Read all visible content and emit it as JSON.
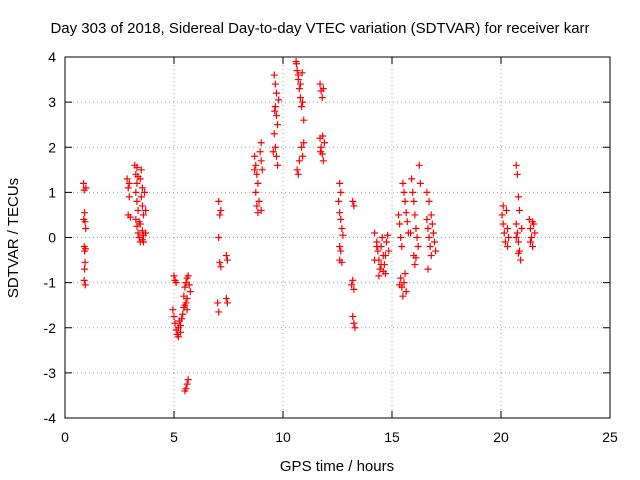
{
  "chart_data": {
    "type": "scatter",
    "title": "Day 303 of 2018, Sidereal Day-to-day VTEC variation (SDTVAR) for receiver karr",
    "xlabel": "GPS time / hours",
    "ylabel": "SDTVAR / TECUs",
    "xlim": [
      0,
      25
    ],
    "ylim": [
      -4,
      4
    ],
    "xticks": [
      "0",
      "5",
      "10",
      "15",
      "20",
      "25"
    ],
    "yticks": [
      "-4",
      "-3",
      "-2",
      "-1",
      "0",
      "1",
      "2",
      "3",
      "4"
    ],
    "grid": true,
    "legend": "none",
    "marker": "+",
    "marker_color": "#ff0000",
    "series": [
      {
        "name": "SDTVAR",
        "points": [
          [
            0.85,
            1.2
          ],
          [
            0.88,
            1.05
          ],
          [
            0.9,
            0.55
          ],
          [
            0.92,
            0.35
          ],
          [
            0.95,
            0.2
          ],
          [
            0.88,
            -0.2
          ],
          [
            0.9,
            -0.3
          ],
          [
            0.92,
            -0.55
          ],
          [
            0.9,
            -0.7
          ],
          [
            0.88,
            -0.95
          ],
          [
            0.93,
            -1.05
          ],
          [
            0.96,
            1.1
          ],
          [
            0.86,
            0.4
          ],
          [
            0.94,
            -0.25
          ],
          [
            2.85,
            1.3
          ],
          [
            2.9,
            1.1
          ],
          [
            2.95,
            0.9
          ],
          [
            2.9,
            0.5
          ],
          [
            3.0,
            0.45
          ],
          [
            2.95,
            1.2
          ],
          [
            3.2,
            1.6
          ],
          [
            3.25,
            1.4
          ],
          [
            3.3,
            1.2
          ],
          [
            3.25,
            1.0
          ],
          [
            3.3,
            0.8
          ],
          [
            3.35,
            0.6
          ],
          [
            3.25,
            0.4
          ],
          [
            3.3,
            0.25
          ],
          [
            3.35,
            0.1
          ],
          [
            3.4,
            0.0
          ],
          [
            3.45,
            -0.1
          ],
          [
            3.5,
            1.5
          ],
          [
            3.45,
            1.3
          ],
          [
            3.55,
            1.1
          ],
          [
            3.5,
            0.9
          ],
          [
            3.55,
            0.7
          ],
          [
            3.6,
            0.5
          ],
          [
            3.45,
            0.3
          ],
          [
            3.55,
            0.15
          ],
          [
            3.6,
            0.05
          ],
          [
            3.55,
            -0.05
          ],
          [
            3.65,
            1.0
          ],
          [
            3.7,
            0.6
          ],
          [
            3.7,
            0.1
          ],
          [
            3.3,
            1.55
          ],
          [
            3.35,
            1.35
          ],
          [
            3.4,
            0.35
          ],
          [
            3.6,
            -0.1
          ],
          [
            4.95,
            -1.6
          ],
          [
            5.0,
            -1.75
          ],
          [
            5.05,
            -1.9
          ],
          [
            5.1,
            -2.05
          ],
          [
            5.15,
            -2.15
          ],
          [
            5.2,
            -2.0
          ],
          [
            5.25,
            -1.85
          ],
          [
            5.3,
            -2.1
          ],
          [
            5.35,
            -1.8
          ],
          [
            5.4,
            -1.7
          ],
          [
            5.45,
            -1.55
          ],
          [
            5.5,
            -1.5
          ],
          [
            5.55,
            -1.45
          ],
          [
            5.6,
            -1.6
          ],
          [
            5.45,
            -1.3
          ],
          [
            5.5,
            -1.1
          ],
          [
            5.55,
            -1.0
          ],
          [
            5.6,
            -0.9
          ],
          [
            5.65,
            -0.85
          ],
          [
            5.7,
            -1.05
          ],
          [
            5.75,
            -1.2
          ],
          [
            5.6,
            -1.35
          ],
          [
            5.55,
            -3.35
          ],
          [
            5.6,
            -3.25
          ],
          [
            5.65,
            -3.15
          ],
          [
            5.5,
            -3.4
          ],
          [
            5.0,
            -0.85
          ],
          [
            5.05,
            -0.95
          ],
          [
            5.1,
            -1.0
          ],
          [
            5.2,
            -2.2
          ],
          [
            5.3,
            -1.95
          ],
          [
            7.05,
            0.8
          ],
          [
            7.1,
            0.5
          ],
          [
            7.05,
            0.0
          ],
          [
            7.1,
            -0.55
          ],
          [
            7.15,
            -0.65
          ],
          [
            7.0,
            -1.45
          ],
          [
            7.05,
            -1.65
          ],
          [
            7.15,
            0.6
          ],
          [
            7.4,
            -0.4
          ],
          [
            7.45,
            -0.5
          ],
          [
            7.4,
            -1.35
          ],
          [
            7.45,
            -1.45
          ],
          [
            8.7,
            1.8
          ],
          [
            8.75,
            1.6
          ],
          [
            8.8,
            1.4
          ],
          [
            8.85,
            1.2
          ],
          [
            8.75,
            1.0
          ],
          [
            8.8,
            0.7
          ],
          [
            8.85,
            0.55
          ],
          [
            8.95,
            1.9
          ],
          [
            9.0,
            2.1
          ],
          [
            9.05,
            1.5
          ],
          [
            9.0,
            1.7
          ],
          [
            8.9,
            0.8
          ],
          [
            9.0,
            0.6
          ],
          [
            8.7,
            1.5
          ],
          [
            9.6,
            3.6
          ],
          [
            9.65,
            3.4
          ],
          [
            9.7,
            3.2
          ],
          [
            9.65,
            2.9
          ],
          [
            9.7,
            2.7
          ],
          [
            9.75,
            2.5
          ],
          [
            9.6,
            2.3
          ],
          [
            9.65,
            2.0
          ],
          [
            9.7,
            1.8
          ],
          [
            9.75,
            1.6
          ],
          [
            9.8,
            3.05
          ],
          [
            9.55,
            1.9
          ],
          [
            9.62,
            2.8
          ],
          [
            10.6,
            3.9
          ],
          [
            10.65,
            3.7
          ],
          [
            10.7,
            3.5
          ],
          [
            10.75,
            3.3
          ],
          [
            10.8,
            3.1
          ],
          [
            10.85,
            2.9
          ],
          [
            10.7,
            3.6
          ],
          [
            10.8,
            3.4
          ],
          [
            10.85,
            2.0
          ],
          [
            10.9,
            1.8
          ],
          [
            10.95,
            2.1
          ],
          [
            10.65,
            1.5
          ],
          [
            10.7,
            1.4
          ],
          [
            10.75,
            1.7
          ],
          [
            10.9,
            3.0
          ],
          [
            10.95,
            2.6
          ],
          [
            10.62,
            3.85
          ],
          [
            10.88,
            3.65
          ],
          [
            11.7,
            3.4
          ],
          [
            11.75,
            3.25
          ],
          [
            11.8,
            3.1
          ],
          [
            11.85,
            3.3
          ],
          [
            11.7,
            2.2
          ],
          [
            11.75,
            2.0
          ],
          [
            11.8,
            1.85
          ],
          [
            11.85,
            1.7
          ],
          [
            11.9,
            2.1
          ],
          [
            11.72,
            1.9
          ],
          [
            11.82,
            2.25
          ],
          [
            12.6,
            1.2
          ],
          [
            12.65,
            1.0
          ],
          [
            12.55,
            0.8
          ],
          [
            12.6,
            0.55
          ],
          [
            12.65,
            0.4
          ],
          [
            12.7,
            0.2
          ],
          [
            12.6,
            -0.2
          ],
          [
            12.65,
            -0.3
          ],
          [
            12.6,
            -0.5
          ],
          [
            12.7,
            -0.55
          ],
          [
            12.75,
            0.05
          ],
          [
            13.2,
            0.8
          ],
          [
            13.25,
            0.7
          ],
          [
            13.2,
            -0.95
          ],
          [
            13.25,
            -1.15
          ],
          [
            13.2,
            -1.75
          ],
          [
            13.25,
            -1.9
          ],
          [
            13.3,
            -2.0
          ],
          [
            13.15,
            -1.05
          ],
          [
            14.2,
            0.1
          ],
          [
            14.3,
            -0.1
          ],
          [
            14.35,
            -0.3
          ],
          [
            14.4,
            -0.5
          ],
          [
            14.45,
            -0.7
          ],
          [
            14.5,
            -0.2
          ],
          [
            14.55,
            0.0
          ],
          [
            14.6,
            -0.4
          ],
          [
            14.65,
            -0.6
          ],
          [
            14.7,
            -0.8
          ],
          [
            14.75,
            -0.1
          ],
          [
            14.8,
            0.05
          ],
          [
            14.85,
            -0.3
          ],
          [
            14.4,
            -0.85
          ],
          [
            14.6,
            -0.75
          ],
          [
            14.3,
            -0.2
          ],
          [
            14.5,
            -0.6
          ],
          [
            14.7,
            -0.4
          ],
          [
            14.2,
            -0.5
          ],
          [
            15.3,
            0.5
          ],
          [
            15.35,
            0.3
          ],
          [
            15.4,
            0.0
          ],
          [
            15.45,
            -0.2
          ],
          [
            15.5,
            1.2
          ],
          [
            15.55,
            1.0
          ],
          [
            15.6,
            0.8
          ],
          [
            15.65,
            0.55
          ],
          [
            15.7,
            0.35
          ],
          [
            15.75,
            0.1
          ],
          [
            15.4,
            -0.9
          ],
          [
            15.45,
            -1.1
          ],
          [
            15.5,
            -1.3
          ],
          [
            15.55,
            -1.0
          ],
          [
            15.6,
            -0.8
          ],
          [
            15.65,
            -1.2
          ],
          [
            15.35,
            -1.05
          ],
          [
            15.9,
            1.3
          ],
          [
            15.95,
            1.0
          ],
          [
            16.0,
            0.8
          ],
          [
            16.05,
            0.5
          ],
          [
            16.1,
            0.2
          ],
          [
            16.15,
            0.0
          ],
          [
            16.2,
            -0.2
          ],
          [
            16.25,
            1.6
          ],
          [
            16.3,
            1.2
          ],
          [
            16.0,
            -0.4
          ],
          [
            16.05,
            -0.6
          ],
          [
            15.85,
            0.1
          ],
          [
            16.1,
            -0.45
          ],
          [
            16.6,
            0.4
          ],
          [
            16.65,
            0.2
          ],
          [
            16.7,
            0.0
          ],
          [
            16.75,
            -0.2
          ],
          [
            16.8,
            -0.4
          ],
          [
            16.85,
            0.3
          ],
          [
            16.9,
            0.1
          ],
          [
            16.95,
            -0.1
          ],
          [
            17.0,
            -0.3
          ],
          [
            16.6,
            1.0
          ],
          [
            16.7,
            0.8
          ],
          [
            16.65,
            -0.7
          ],
          [
            16.8,
            0.5
          ],
          [
            20.05,
            0.5
          ],
          [
            20.1,
            0.3
          ],
          [
            20.15,
            0.1
          ],
          [
            20.2,
            -0.1
          ],
          [
            20.25,
            0.6
          ],
          [
            20.3,
            0.2
          ],
          [
            20.35,
            0.0
          ],
          [
            20.3,
            -0.2
          ],
          [
            20.1,
            0.7
          ],
          [
            20.7,
            1.6
          ],
          [
            20.75,
            1.4
          ],
          [
            20.8,
            0.9
          ],
          [
            20.85,
            0.6
          ],
          [
            20.7,
            0.3
          ],
          [
            20.75,
            0.1
          ],
          [
            20.8,
            -0.1
          ],
          [
            20.85,
            -0.3
          ],
          [
            20.9,
            -0.5
          ],
          [
            20.95,
            0.2
          ],
          [
            20.7,
            0.0
          ],
          [
            20.8,
            -0.35
          ],
          [
            21.3,
            0.4
          ],
          [
            21.35,
            0.2
          ],
          [
            21.4,
            0.0
          ],
          [
            21.45,
            -0.2
          ],
          [
            21.5,
            0.3
          ],
          [
            21.55,
            0.1
          ],
          [
            21.35,
            -0.1
          ],
          [
            21.45,
            0.35
          ]
        ]
      }
    ]
  }
}
